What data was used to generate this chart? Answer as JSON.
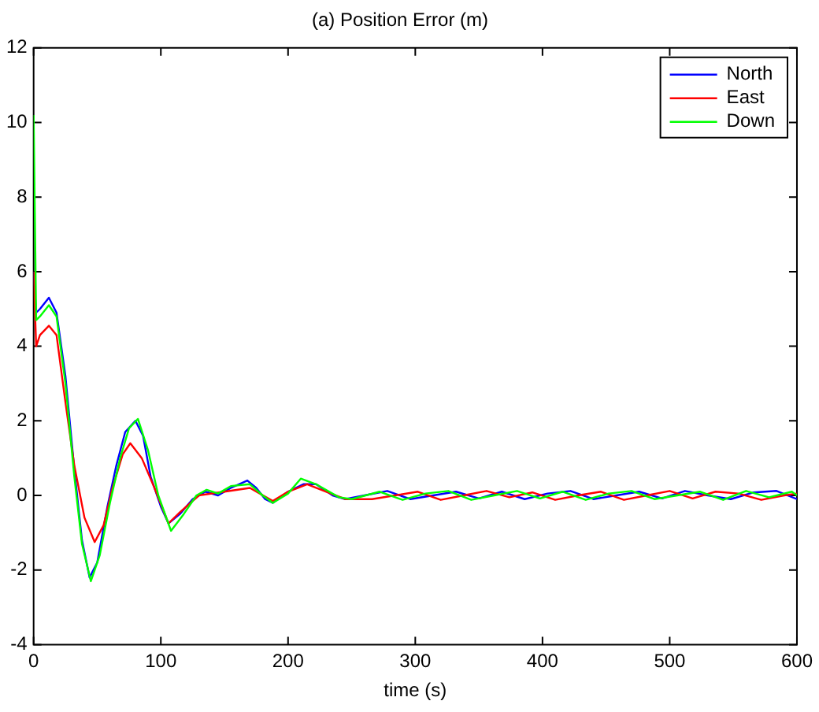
{
  "chart_data": {
    "type": "line",
    "title": "(a) Position Error (m)",
    "xlabel": "time (s)",
    "xlim": [
      0,
      600
    ],
    "xticks": [
      0,
      100,
      200,
      300,
      400,
      500,
      600
    ],
    "ylim": [
      -4,
      12
    ],
    "yticks": [
      -4,
      -2,
      0,
      2,
      4,
      6,
      8,
      10,
      12
    ],
    "grid": false,
    "legend": "top right",
    "marker": "none",
    "line_style": "solid",
    "series": [
      {
        "name": "North",
        "color": "#0000ff",
        "x": [
          0,
          2,
          5,
          12,
          18,
          25,
          32,
          38,
          44,
          50,
          58,
          65,
          72,
          80,
          86,
          92,
          100,
          106,
          115,
          125,
          135,
          145,
          155,
          168,
          175,
          182,
          188,
          200,
          212,
          222,
          235,
          245,
          260,
          278,
          296,
          314,
          332,
          350,
          368,
          386,
          404,
          422,
          440,
          458,
          476,
          494,
          512,
          530,
          548,
          566,
          584,
          600
        ],
        "values": [
          6,
          4.9,
          5.0,
          5.3,
          4.9,
          3.2,
          0.7,
          -1.2,
          -2.2,
          -1.8,
          -0.3,
          0.8,
          1.7,
          2.0,
          1.6,
          0.5,
          -0.3,
          -0.75,
          -0.5,
          -0.1,
          0.1,
          0,
          0.2,
          0.4,
          0.2,
          -0.1,
          -0.2,
          0.1,
          0.3,
          0.3,
          0,
          -0.1,
          0,
          0.12,
          -0.1,
          0,
          0.1,
          -0.08,
          0.1,
          -0.1,
          0.05,
          0.12,
          -0.1,
          0,
          0.1,
          -0.08,
          0.12,
          0,
          -0.1,
          0.08,
          0.12,
          -0.1
        ]
      },
      {
        "name": "East",
        "color": "#ff0000",
        "x": [
          0,
          2,
          5,
          12,
          18,
          25,
          32,
          40,
          48,
          55,
          62,
          70,
          76,
          85,
          95,
          106,
          115,
          130,
          150,
          170,
          188,
          200,
          215,
          230,
          245,
          266,
          284,
          302,
          320,
          338,
          356,
          374,
          392,
          410,
          428,
          446,
          464,
          482,
          500,
          518,
          536,
          554,
          572,
          590,
          600
        ],
        "values": [
          6,
          4,
          4.3,
          4.55,
          4.3,
          2.5,
          0.8,
          -0.6,
          -1.25,
          -0.8,
          0.2,
          1.1,
          1.4,
          1.0,
          0.2,
          -0.75,
          -0.45,
          0,
          0.1,
          0.2,
          -0.15,
          0.1,
          0.3,
          0.1,
          -0.1,
          -0.1,
          0,
          0.1,
          -0.12,
          0,
          0.12,
          -0.05,
          0.08,
          -0.12,
          0,
          0.1,
          -0.12,
          0,
          0.12,
          -0.08,
          0.1,
          0.05,
          -0.12,
          0,
          0.05
        ]
      },
      {
        "name": "Down",
        "color": "#00ff00",
        "x": [
          0,
          2,
          5,
          12,
          18,
          25,
          32,
          38,
          45,
          52,
          60,
          68,
          75,
          82,
          90,
          98,
          108,
          118,
          128,
          136,
          145,
          155,
          170,
          180,
          188,
          200,
          210,
          222,
          240,
          250,
          272,
          290,
          308,
          326,
          344,
          362,
          380,
          398,
          416,
          434,
          452,
          470,
          488,
          506,
          524,
          542,
          560,
          578,
          596,
          600
        ],
        "values": [
          10.2,
          4.7,
          4.8,
          5.1,
          4.8,
          3,
          0.5,
          -1.3,
          -2.3,
          -1.6,
          -0.2,
          1.0,
          1.8,
          2.05,
          1.2,
          0,
          -0.95,
          -0.5,
          0,
          0.15,
          0.05,
          0.25,
          0.3,
          0,
          -0.2,
          0.05,
          0.45,
          0.3,
          -0.05,
          -0.1,
          0.1,
          -0.12,
          0.05,
          0.12,
          -0.12,
          0,
          0.12,
          -0.08,
          0.1,
          -0.12,
          0.05,
          0.12,
          -0.1,
          0,
          0.1,
          -0.12,
          0.12,
          -0.05,
          0.1,
          0
        ]
      }
    ]
  }
}
